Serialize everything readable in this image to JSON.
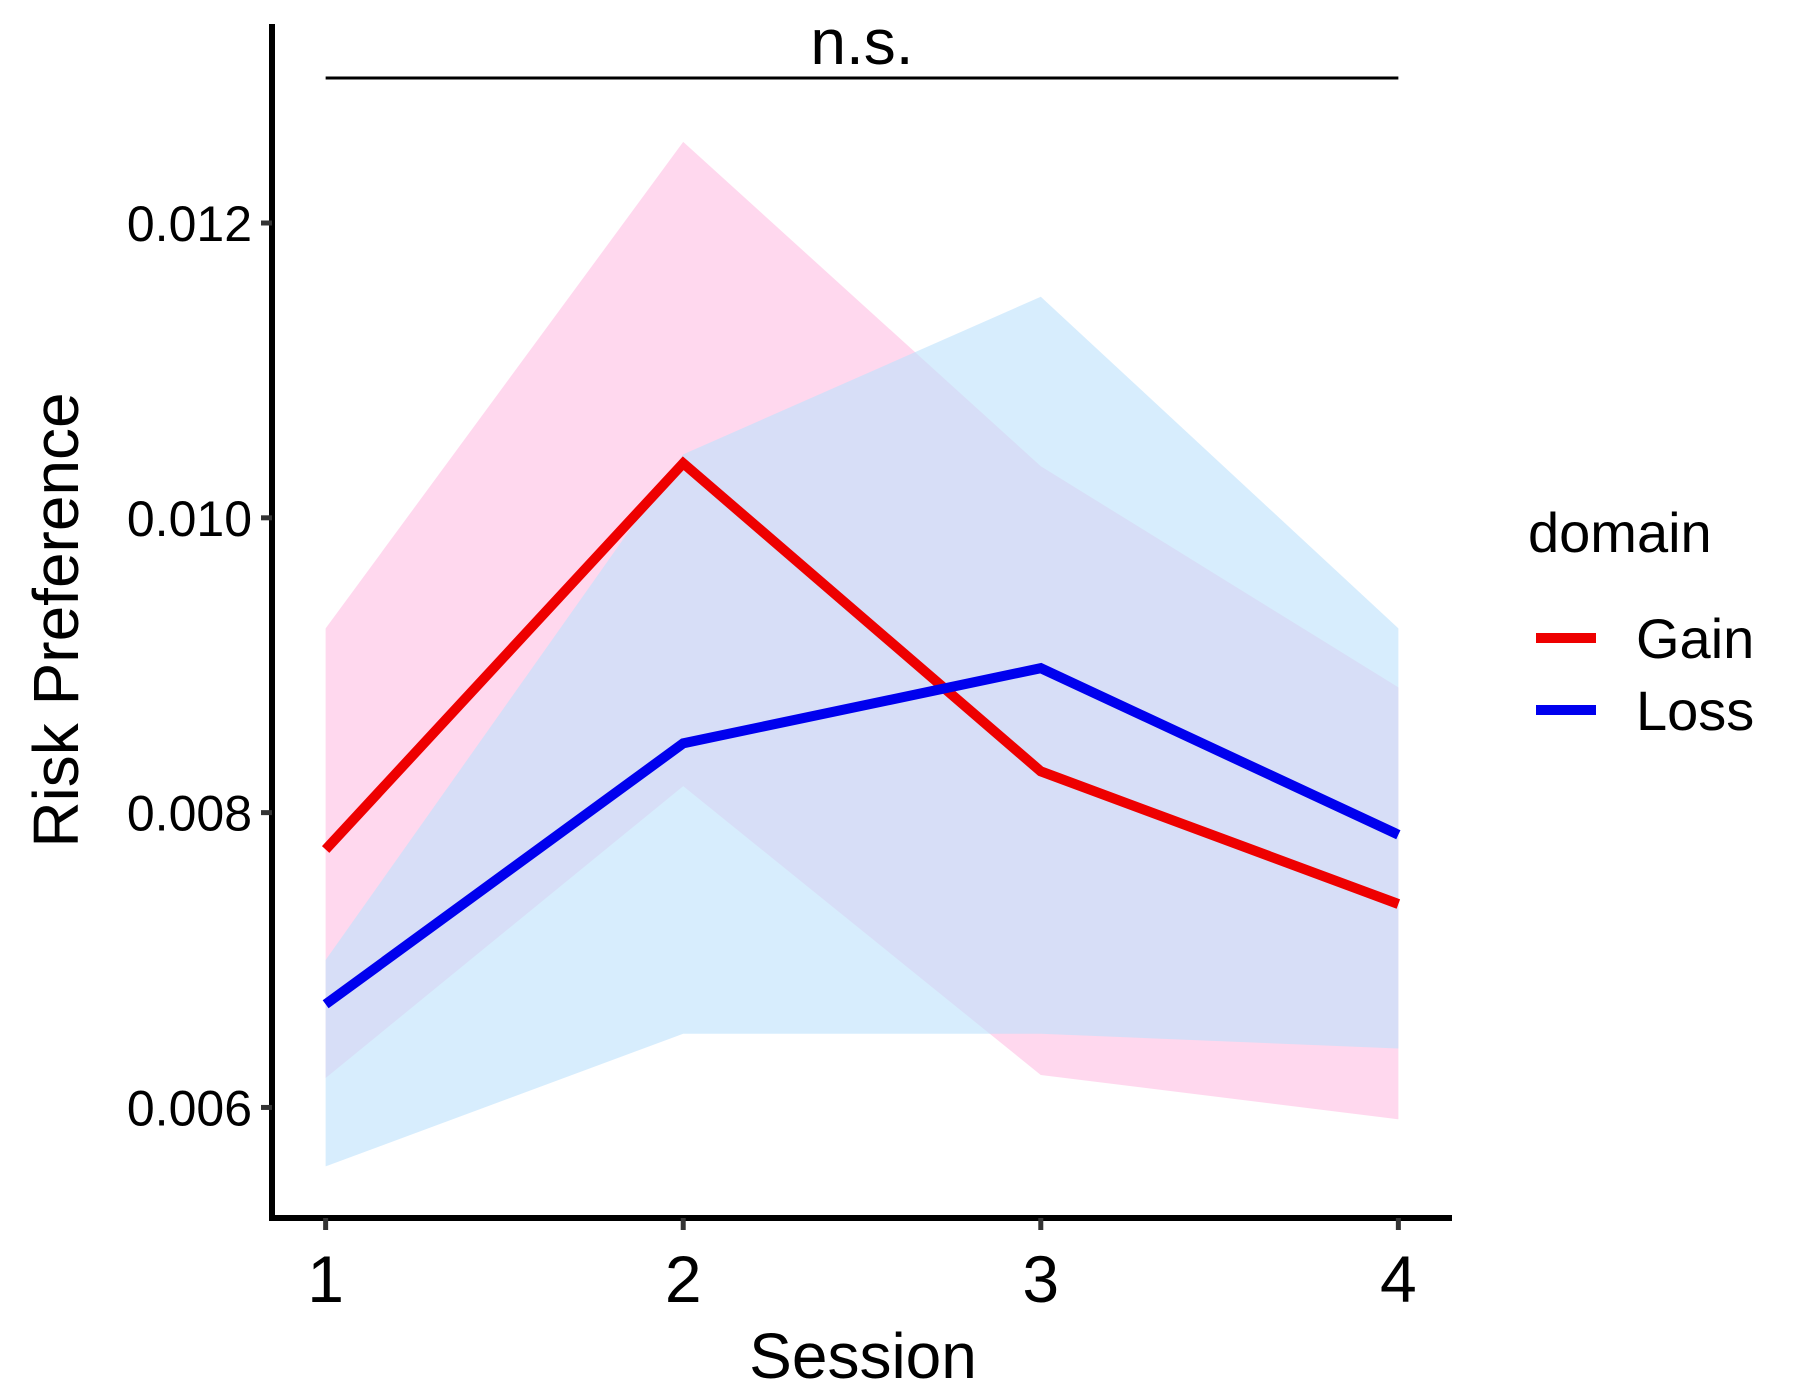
{
  "chart_data": {
    "type": "line",
    "xlabel": "Session",
    "ylabel": "Risk Preference",
    "x": [
      1,
      2,
      3,
      4
    ],
    "xlim": [
      0.85,
      4.15
    ],
    "ylim": [
      0.00525,
      0.01335
    ],
    "yticks": [
      0.006,
      0.008,
      0.01,
      0.012
    ],
    "ytick_labels": [
      "0.006",
      "0.008",
      "0.010",
      "0.012"
    ],
    "xticks": [
      1,
      2,
      3,
      4
    ],
    "xtick_labels": [
      "1",
      "2",
      "3",
      "4"
    ],
    "grid": false,
    "legend": {
      "title": "domain",
      "placement": "right"
    },
    "series": [
      {
        "name": "Gain",
        "color": "#ee0000",
        "ribbon_color": "#ffc0e4",
        "values": [
          0.00775,
          0.01037,
          0.00828,
          0.00738
        ],
        "lower": [
          0.0062,
          0.00818,
          0.00622,
          0.00592
        ],
        "upper": [
          0.00925,
          0.01255,
          0.01035,
          0.00885
        ]
      },
      {
        "name": "Loss",
        "color": "#0000ee",
        "ribbon_color": "#bfe2fb",
        "values": [
          0.0067,
          0.00847,
          0.00898,
          0.00785
        ],
        "lower": [
          0.0056,
          0.0065,
          0.0065,
          0.0064
        ],
        "upper": [
          0.007,
          0.01043,
          0.0115,
          0.00925
        ]
      }
    ],
    "annotation": {
      "text": "n.s.",
      "x_from": 1,
      "x_to": 4
    }
  }
}
